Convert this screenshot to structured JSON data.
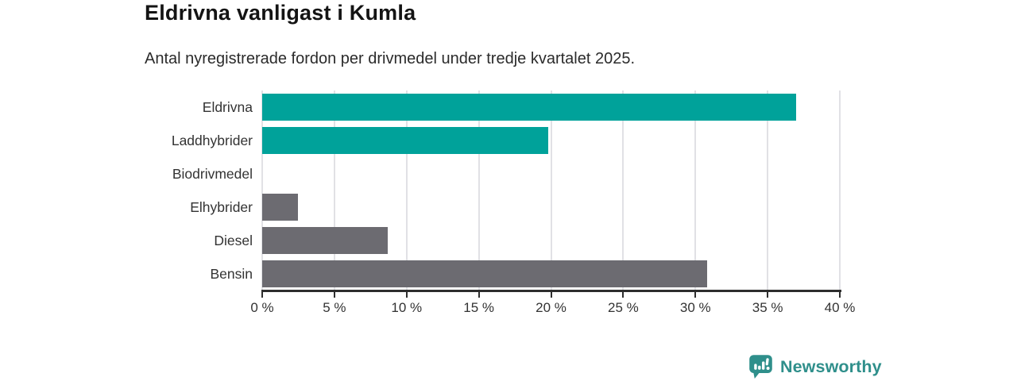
{
  "header": {
    "title": "Eldrivna vanligast i Kumla",
    "subtitle": "Antal nyregistrerade fordon per drivmedel under tredje kvartalet 2025."
  },
  "chart_data": {
    "type": "bar",
    "orientation": "horizontal",
    "title": "Eldrivna vanligast i Kumla",
    "subtitle": "Antal nyregistrerade fordon per drivmedel under tredje kvartalet 2025.",
    "categories": [
      "Eldrivna",
      "Laddhybrider",
      "Biodrivmedel",
      "Elhybrider",
      "Diesel",
      "Bensin"
    ],
    "values": [
      37,
      19.8,
      0,
      2.5,
      8.7,
      30.8
    ],
    "unit": "%",
    "bar_colors": [
      "#00a29a",
      "#00a29a",
      "#6c6b71",
      "#6c6b71",
      "#6c6b71",
      "#6c6b71"
    ],
    "xlim": [
      0,
      40
    ],
    "x_tick_step": 5,
    "x_tick_labels": [
      "0 %",
      "5 %",
      "10 %",
      "15 %",
      "20 %",
      "25 %",
      "30 %",
      "35 %",
      "40 %"
    ],
    "grid": true,
    "legend": false
  },
  "footer": {
    "brand": "Newsworthy"
  },
  "colors": {
    "bar_teal": "#00a29a",
    "bar_gray": "#6c6b71",
    "gridline": "#e1e1e5",
    "axis": "#2e2e2e",
    "text": "#333333",
    "brand_teal": "#2f8f8b",
    "background": "#ffffff"
  }
}
